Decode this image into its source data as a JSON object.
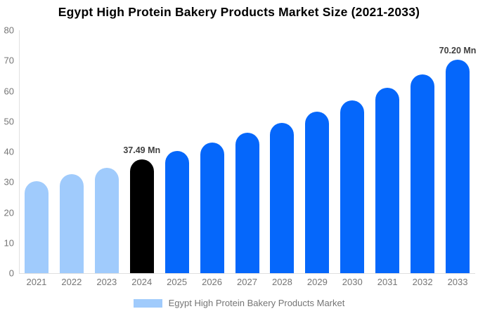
{
  "chart_data": {
    "type": "bar",
    "title": "Egypt High Protein Bakery Products Market Size (2021-2033)",
    "categories": [
      "2021",
      "2022",
      "2023",
      "2024",
      "2025",
      "2026",
      "2027",
      "2028",
      "2029",
      "2030",
      "2031",
      "2032",
      "2033"
    ],
    "values": [
      30.4,
      32.6,
      34.7,
      37.49,
      40.2,
      43.1,
      46.2,
      49.5,
      53.1,
      56.9,
      61.0,
      65.4,
      70.2
    ],
    "unit": "Mn",
    "ylim": [
      0,
      80
    ],
    "yticks": [
      0,
      10,
      20,
      30,
      40,
      50,
      60,
      70,
      80
    ],
    "grid": false,
    "legend_position": "bottom",
    "bar_colors": [
      "#a0cbfc",
      "#a0cbfc",
      "#a0cbfc",
      "#000000",
      "#0567fb",
      "#0567fb",
      "#0567fb",
      "#0567fb",
      "#0567fb",
      "#0567fb",
      "#0567fb",
      "#0567fb",
      "#0567fb"
    ],
    "data_labels": [
      {
        "index": 3,
        "text": "37.49 Mn"
      },
      {
        "index": 12,
        "text": "70.20 Mn"
      }
    ],
    "legend": {
      "label": "Egypt High Protein Bakery Products Market",
      "swatch_color": "#a0cbfc"
    }
  },
  "colors": {
    "title_text": "#000000",
    "axis_text": "#757575",
    "data_label_text": "#3f3f3f",
    "axis_line": "#e0e0e0",
    "background": "#ffffff"
  }
}
